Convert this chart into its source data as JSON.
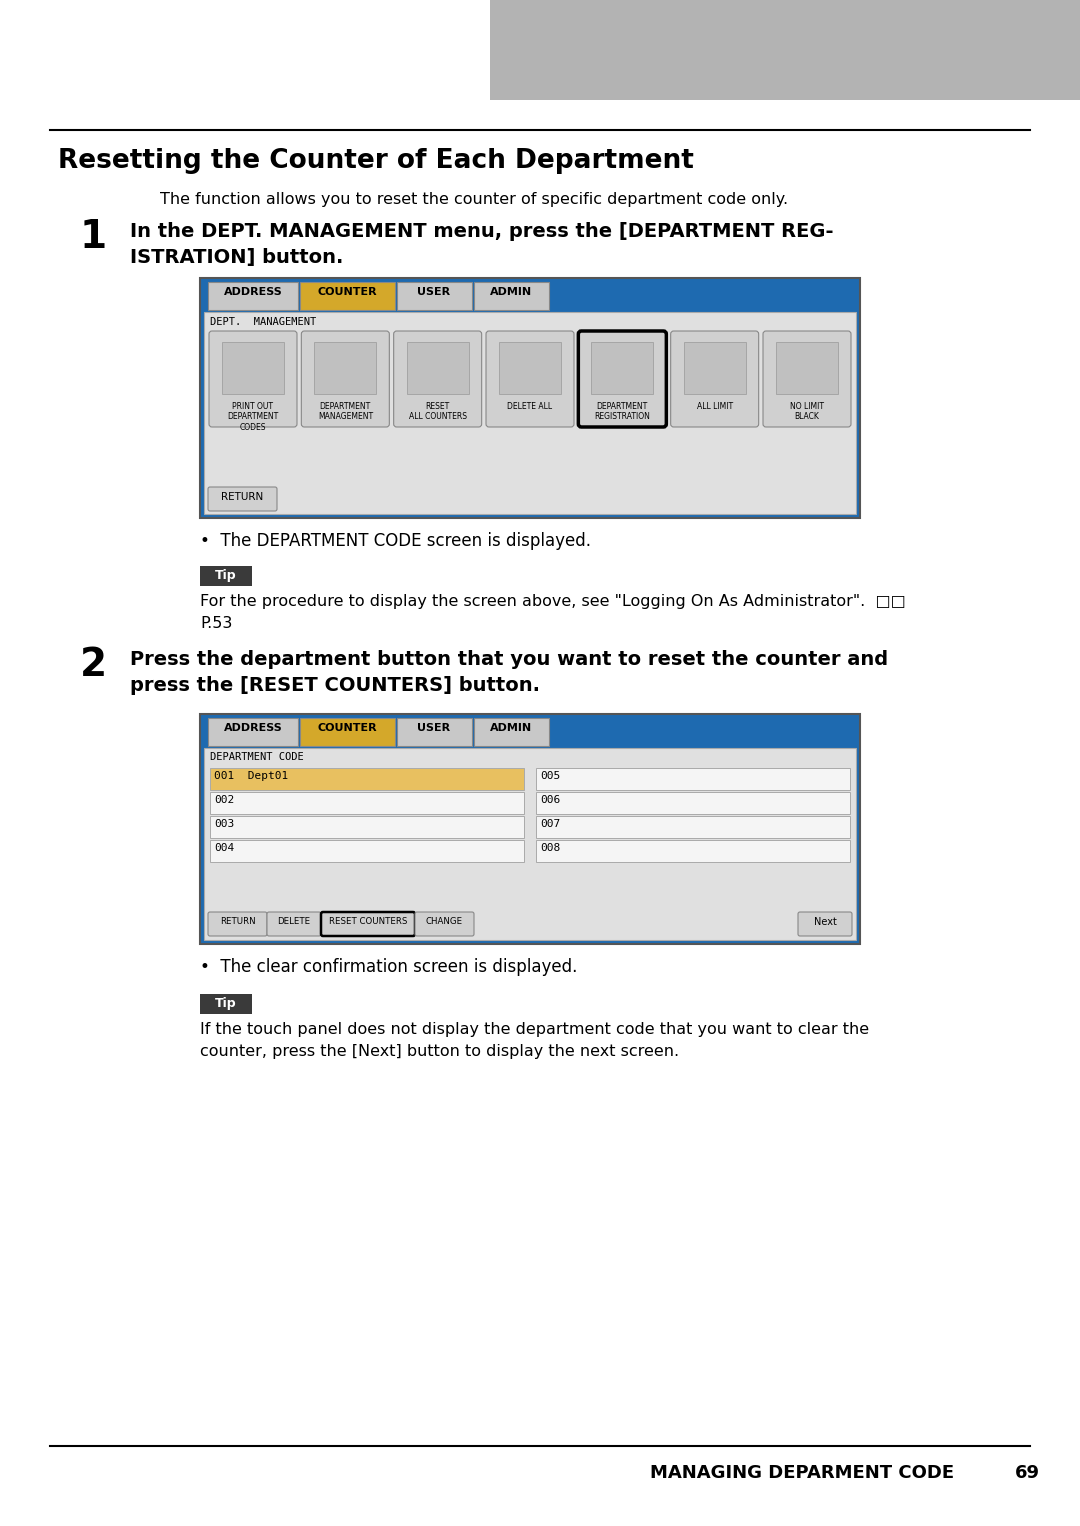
{
  "page_bg": "#ffffff",
  "gray_box_color": "#b3b3b3",
  "title": "Resetting the Counter of Each Department",
  "subtitle": "The function allows you to reset the counter of specific department code only.",
  "step1_num": "1",
  "step1_text_line1": "In the DEPT. MANAGEMENT menu, press the [DEPARTMENT REG-",
  "step1_text_line2": "ISTRATION] button.",
  "step1_bullet": "The DEPARTMENT CODE screen is displayed.",
  "tip_bg": "#3a3a3a",
  "tip_text": "Tip",
  "tip1_body_line1": "For the procedure to display the screen above, see \"Logging On As Administrator\".  □□",
  "tip1_body_line2": "P.53",
  "step2_num": "2",
  "step2_text_line1": "Press the department button that you want to reset the counter and",
  "step2_text_line2": "press the [RESET COUNTERS] button.",
  "step2_bullet": "The clear confirmation screen is displayed.",
  "tip2_body_line1": "If the touch panel does not display the department code that you want to clear the",
  "tip2_body_line2": "counter, press the [Next] button to display the next screen.",
  "footer_text": "MANAGING DEPARMENT CODE",
  "footer_page": "69",
  "screen_blue": "#1e6ab0",
  "tab_gold": "#d4a82a",
  "tab_gray": "#c8c8c8",
  "tab_white": "#e8e8e8",
  "screen_light_bg": "#e0e0e0",
  "btn_face": "#d0d0d0",
  "row_gold": "#e8c060",
  "row_white": "#f5f5f5",
  "row_border": "#aaaaaa"
}
